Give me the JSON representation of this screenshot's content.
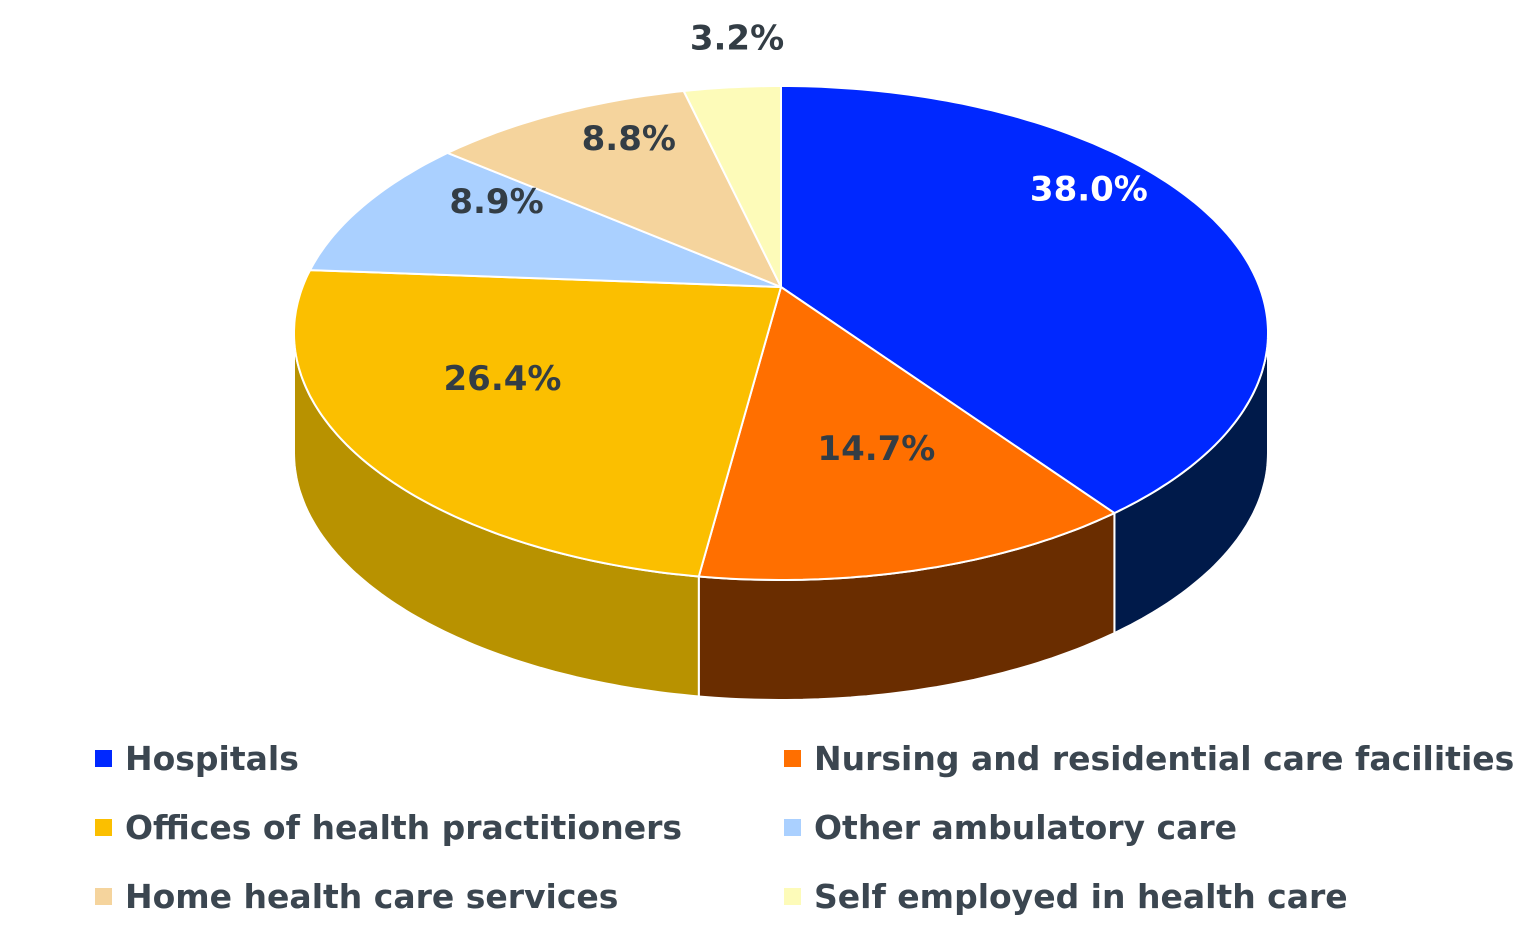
{
  "chart_data": {
    "type": "pie",
    "style": "3d",
    "title": "",
    "legend_position": "bottom",
    "slices": [
      {
        "name": "Hospitals",
        "value": 38.0,
        "label": "38.0%",
        "color": "#0028ff",
        "side_color": "#001a4a",
        "label_color": "#ffffff"
      },
      {
        "name": "Nursing and residential care facilities",
        "value": 14.7,
        "label": "14.7%",
        "color": "#ff6f00",
        "side_color": "#6a2d00",
        "label_color": "#333d45"
      },
      {
        "name": "Offices of health practitioners",
        "value": 26.4,
        "label": "26.4%",
        "color": "#fbbf00",
        "side_color": "#b89200",
        "label_color": "#333d45"
      },
      {
        "name": "Other ambulatory care",
        "value": 8.9,
        "label": "8.9%",
        "color": "#aad0ff",
        "side_color": "#7f9cc0",
        "label_color": "#333d45"
      },
      {
        "name": "Home health care services",
        "value": 8.8,
        "label": "8.8%",
        "color": "#f5d49d",
        "side_color": "#b89f75",
        "label_color": "#333d45"
      },
      {
        "name": "Self employed in health care",
        "value": 3.2,
        "label": "3.2%",
        "color": "#fdfbb9",
        "side_color": "#bebc8b",
        "label_color": "#333d45"
      }
    ]
  }
}
